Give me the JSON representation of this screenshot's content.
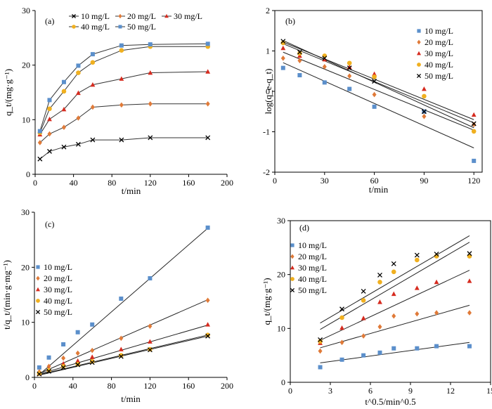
{
  "chart_data": [
    {
      "panel": "(a)",
      "type": "line",
      "xlabel": "t/min",
      "ylabel": "q_t/(mg·g⁻¹)",
      "xlim": [
        0,
        200
      ],
      "ylim": [
        0,
        30
      ],
      "xticks": [
        0,
        40,
        80,
        120,
        160,
        200
      ],
      "yticks": [
        0,
        10,
        20,
        30
      ],
      "legend": "top, 3 + 2 columns",
      "grid": false,
      "x": [
        5,
        15,
        30,
        45,
        60,
        90,
        120,
        180
      ],
      "series": [
        {
          "name": "10 mg/L",
          "marker": "x",
          "color": "#000000",
          "y": [
            2.8,
            4.2,
            5.0,
            5.5,
            6.3,
            6.3,
            6.7,
            6.7
          ]
        },
        {
          "name": "20 mg/L",
          "marker": "diamond",
          "color": "#e07a38",
          "y": [
            5.8,
            7.4,
            8.6,
            10.3,
            12.3,
            12.7,
            12.9,
            12.9
          ]
        },
        {
          "name": "30 mg/L",
          "marker": "triangle",
          "color": "#d62b1f",
          "y": [
            7.3,
            10.1,
            11.9,
            14.9,
            16.4,
            17.5,
            18.6,
            18.8
          ]
        },
        {
          "name": "40 mg/L",
          "marker": "circle",
          "color": "#f0b020",
          "y": [
            7.6,
            12.0,
            15.2,
            18.6,
            20.5,
            22.7,
            23.4,
            23.4
          ]
        },
        {
          "name": "50 mg/L",
          "marker": "square",
          "color": "#5b8fcb",
          "y": [
            7.9,
            13.6,
            16.9,
            19.9,
            22.0,
            23.6,
            23.8,
            23.9
          ]
        }
      ]
    },
    {
      "panel": "(b)",
      "type": "scatter",
      "xlabel": "t/min",
      "ylabel": "log(q_e-q_t)",
      "xlim": [
        0,
        125
      ],
      "ylim": [
        -2,
        2
      ],
      "xticks": [
        0,
        30,
        60,
        90,
        120
      ],
      "yticks": [
        -2,
        -1,
        0,
        1,
        2
      ],
      "legend": "right",
      "grid": false,
      "x": [
        5,
        15,
        30,
        45,
        60,
        90,
        120
      ],
      "series": [
        {
          "name": "10 mg/L",
          "marker": "square",
          "color": "#5b8fcb",
          "y": [
            0.58,
            0.4,
            0.22,
            0.06,
            -0.38,
            -0.5,
            -1.72
          ],
          "fit": [
            0.71,
            -1.4
          ]
        },
        {
          "name": "20 mg/L",
          "marker": "diamond",
          "color": "#e07a38",
          "y": [
            0.82,
            0.76,
            0.61,
            0.38,
            -0.08,
            -0.62,
            -0.82
          ],
          "fit": [
            0.97,
            -0.96
          ]
        },
        {
          "name": "30 mg/L",
          "marker": "triangle",
          "color": "#d62b1f",
          "y": [
            1.07,
            0.88,
            0.79,
            0.6,
            0.43,
            0.06,
            -0.58
          ],
          "fit": [
            1.22,
            -0.7
          ]
        },
        {
          "name": "40 mg/L",
          "marker": "circle",
          "color": "#f0b020",
          "y": [
            1.2,
            0.94,
            0.88,
            0.7,
            0.36,
            -0.12,
            -0.99
          ],
          "fit": [
            1.26,
            -0.9
          ]
        },
        {
          "name": "50 mg/L",
          "marker": "x",
          "color": "#000000",
          "y": [
            1.24,
            0.97,
            0.82,
            0.58,
            0.25,
            -0.5,
            -0.8
          ],
          "fit": [
            1.18,
            -0.78
          ]
        }
      ]
    },
    {
      "panel": "(c)",
      "type": "scatter",
      "xlabel": "t/min",
      "ylabel": "t/q_t/(min·g·mg⁻¹)",
      "xlim": [
        0,
        200
      ],
      "ylim": [
        0,
        30
      ],
      "xticks": [
        0,
        40,
        80,
        120,
        160,
        200
      ],
      "yticks": [
        0,
        10,
        20,
        30
      ],
      "legend": "left",
      "grid": false,
      "x": [
        5,
        15,
        30,
        45,
        60,
        90,
        120,
        180
      ],
      "series": [
        {
          "name": "10 mg/L",
          "marker": "square",
          "color": "#5b8fcb",
          "y": [
            1.8,
            3.6,
            6.0,
            8.2,
            9.6,
            14.3,
            18.0,
            27.2
          ],
          "fit": [
            0.5,
            27.1
          ]
        },
        {
          "name": "20 mg/L",
          "marker": "diamond",
          "color": "#e07a38",
          "y": [
            1.0,
            2.0,
            3.5,
            4.4,
            4.9,
            7.1,
            9.3,
            14.0
          ],
          "fit": [
            0.7,
            14.1
          ]
        },
        {
          "name": "30 mg/L",
          "marker": "triangle",
          "color": "#d62b1f",
          "y": [
            0.7,
            1.5,
            2.5,
            3.0,
            3.7,
            5.1,
            6.5,
            9.6
          ],
          "fit": [
            0.6,
            9.5
          ]
        },
        {
          "name": "40 mg/L",
          "marker": "circle",
          "color": "#f0b020",
          "y": [
            0.7,
            1.3,
            2.0,
            2.4,
            2.9,
            4.0,
            5.1,
            7.7
          ],
          "fit": [
            0.5,
            7.7
          ]
        },
        {
          "name": "50 mg/L",
          "marker": "x",
          "color": "#000000",
          "y": [
            0.6,
            1.1,
            1.8,
            2.3,
            2.7,
            3.8,
            5.0,
            7.5
          ],
          "fit": [
            0.4,
            7.5
          ]
        }
      ]
    },
    {
      "panel": "(d)",
      "type": "scatter",
      "xlabel": "t^0.5/min^0.5",
      "ylabel": "q_t/(mg·g⁻¹)",
      "xlim": [
        0,
        15
      ],
      "ylim": [
        0,
        30
      ],
      "xticks": [
        0,
        3,
        6,
        9,
        12,
        15
      ],
      "yticks": [
        0,
        10,
        20,
        30
      ],
      "legend": "left",
      "grid": false,
      "x": [
        2.24,
        3.87,
        5.48,
        6.71,
        7.75,
        9.49,
        10.95,
        13.42
      ],
      "series": [
        {
          "name": "10 mg/L",
          "marker": "square",
          "color": "#5b8fcb",
          "y": [
            2.8,
            4.2,
            5.0,
            5.5,
            6.3,
            6.3,
            6.7,
            6.7
          ],
          "fit": [
            3.6,
            7.4
          ]
        },
        {
          "name": "20 mg/L",
          "marker": "diamond",
          "color": "#e07a38",
          "y": [
            5.8,
            7.4,
            8.6,
            10.3,
            12.3,
            12.7,
            12.9,
            12.9
          ],
          "fit": [
            6.4,
            14.3
          ]
        },
        {
          "name": "30 mg/L",
          "marker": "triangle",
          "color": "#d62b1f",
          "y": [
            7.3,
            10.1,
            11.9,
            14.9,
            16.4,
            17.5,
            18.6,
            18.8
          ],
          "fit": [
            7.8,
            20.8
          ]
        },
        {
          "name": "40 mg/L",
          "marker": "circle",
          "color": "#f0b020",
          "y": [
            7.6,
            12.0,
            15.2,
            18.6,
            20.5,
            22.7,
            23.4,
            23.4
          ],
          "fit": [
            9.8,
            26.0
          ]
        },
        {
          "name": "50 mg/L",
          "marker": "x",
          "color": "#000000",
          "y": [
            7.9,
            13.6,
            16.9,
            19.9,
            22.0,
            23.6,
            23.8,
            23.9
          ],
          "fit": [
            11.0,
            27.2
          ]
        }
      ]
    }
  ]
}
